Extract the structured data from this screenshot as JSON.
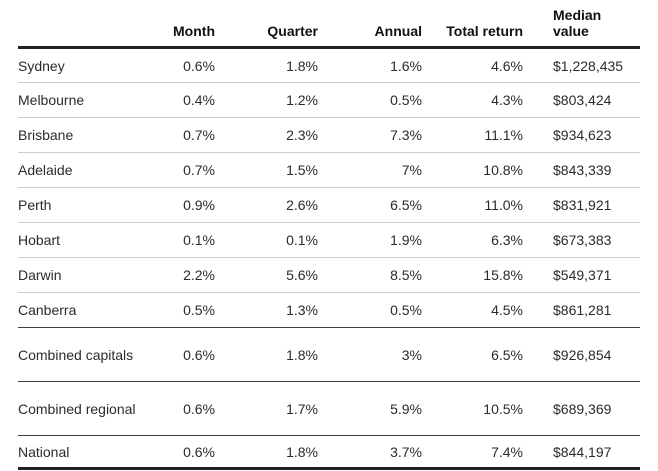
{
  "accent_colors": {
    "heavy_rule": "#222222",
    "dark_rule": "#3d3d3d",
    "light_rule": "#cbcbcb",
    "text": "#2b2b2b"
  },
  "table": {
    "columns": [
      {
        "label": ""
      },
      {
        "label": "Month"
      },
      {
        "label": "Quarter"
      },
      {
        "label": "Annual"
      },
      {
        "label": "Total return"
      },
      {
        "label": "Median value"
      }
    ],
    "rows": [
      {
        "label": "Sydney",
        "month": "0.6%",
        "quarter": "1.8%",
        "annual": "1.6%",
        "total_return": "4.6%",
        "median_value": "$1,228,435"
      },
      {
        "label": "Melbourne",
        "month": "0.4%",
        "quarter": "1.2%",
        "annual": "0.5%",
        "total_return": "4.3%",
        "median_value": "$803,424"
      },
      {
        "label": "Brisbane",
        "month": "0.7%",
        "quarter": "2.3%",
        "annual": "7.3%",
        "total_return": "11.1%",
        "median_value": "$934,623"
      },
      {
        "label": "Adelaide",
        "month": "0.7%",
        "quarter": "1.5%",
        "annual": "7%",
        "total_return": "10.8%",
        "median_value": "$843,339"
      },
      {
        "label": "Perth",
        "month": "0.9%",
        "quarter": "2.6%",
        "annual": "6.5%",
        "total_return": "11.0%",
        "median_value": "$831,921"
      },
      {
        "label": "Hobart",
        "month": "0.1%",
        "quarter": "0.1%",
        "annual": "1.9%",
        "total_return": "6.3%",
        "median_value": "$673,383"
      },
      {
        "label": "Darwin",
        "month": "2.2%",
        "quarter": "5.6%",
        "annual": "8.5%",
        "total_return": "15.8%",
        "median_value": "$549,371"
      },
      {
        "label": "Canberra",
        "month": "0.5%",
        "quarter": "1.3%",
        "annual": "0.5%",
        "total_return": "4.5%",
        "median_value": "$861,281"
      },
      {
        "label": "Combined capitals",
        "month": "0.6%",
        "quarter": "1.8%",
        "annual": "3%",
        "total_return": "6.5%",
        "median_value": "$926,854"
      },
      {
        "label": "Combined regional",
        "month": "0.6%",
        "quarter": "1.7%",
        "annual": "5.9%",
        "total_return": "10.5%",
        "median_value": "$689,369"
      },
      {
        "label": "National",
        "month": "0.6%",
        "quarter": "1.8%",
        "annual": "3.7%",
        "total_return": "7.4%",
        "median_value": "$844,197"
      }
    ]
  },
  "chart_data": {
    "type": "table",
    "title": "",
    "columns": [
      "",
      "Month",
      "Quarter",
      "Annual",
      "Total return",
      "Median value"
    ],
    "rows": [
      [
        "Sydney",
        "0.6%",
        "1.8%",
        "1.6%",
        "4.6%",
        "$1,228,435"
      ],
      [
        "Melbourne",
        "0.4%",
        "1.2%",
        "0.5%",
        "4.3%",
        "$803,424"
      ],
      [
        "Brisbane",
        "0.7%",
        "2.3%",
        "7.3%",
        "11.1%",
        "$934,623"
      ],
      [
        "Adelaide",
        "0.7%",
        "1.5%",
        "7%",
        "10.8%",
        "$843,339"
      ],
      [
        "Perth",
        "0.9%",
        "2.6%",
        "6.5%",
        "11.0%",
        "$831,921"
      ],
      [
        "Hobart",
        "0.1%",
        "0.1%",
        "1.9%",
        "6.3%",
        "$673,383"
      ],
      [
        "Darwin",
        "2.2%",
        "5.6%",
        "8.5%",
        "15.8%",
        "$549,371"
      ],
      [
        "Canberra",
        "0.5%",
        "1.3%",
        "0.5%",
        "4.5%",
        "$861,281"
      ],
      [
        "Combined capitals",
        "0.6%",
        "1.8%",
        "3%",
        "6.5%",
        "$926,854"
      ],
      [
        "Combined regional",
        "0.6%",
        "1.7%",
        "5.9%",
        "10.5%",
        "$689,369"
      ],
      [
        "National",
        "0.6%",
        "1.8%",
        "3.7%",
        "7.4%",
        "$844,197"
      ]
    ]
  }
}
